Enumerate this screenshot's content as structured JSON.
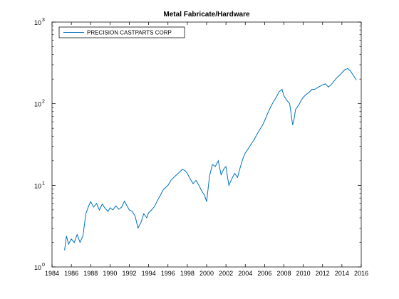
{
  "chart_data": {
    "type": "line",
    "title": "Metal Fabricate/Hardware",
    "xlabel": "",
    "ylabel": "",
    "x_scale": "linear",
    "y_scale": "log",
    "xlim": [
      1984,
      2016
    ],
    "ylim": [
      1,
      1000
    ],
    "x_ticks": [
      "1984",
      "1986",
      "1988",
      "1990",
      "1992",
      "1994",
      "1996",
      "1998",
      "2000",
      "2002",
      "2004",
      "2006",
      "2008",
      "2010",
      "2012",
      "2014",
      "2016"
    ],
    "y_ticks": [
      {
        "base": "10",
        "exp": "0"
      },
      {
        "base": "10",
        "exp": "1"
      },
      {
        "base": "10",
        "exp": "2"
      },
      {
        "base": "10",
        "exp": "3"
      }
    ],
    "grid": false,
    "legend_position": "top-left",
    "color": "#0072BD",
    "series": [
      {
        "name": "PRECISION CASTPARTS CORP",
        "x": [
          1985.3,
          1985.5,
          1985.7,
          1986.0,
          1986.3,
          1986.6,
          1986.9,
          1987.2,
          1987.5,
          1987.8,
          1988.0,
          1988.3,
          1988.6,
          1988.9,
          1989.2,
          1989.5,
          1989.8,
          1990.0,
          1990.3,
          1990.6,
          1990.9,
          1991.2,
          1991.5,
          1991.8,
          1992.0,
          1992.3,
          1992.6,
          1992.9,
          1993.2,
          1993.5,
          1993.8,
          1994.0,
          1994.3,
          1994.6,
          1994.9,
          1995.2,
          1995.5,
          1995.8,
          1996.0,
          1996.3,
          1996.6,
          1996.9,
          1997.2,
          1997.5,
          1997.8,
          1998.0,
          1998.3,
          1998.6,
          1998.9,
          1999.2,
          1999.5,
          1999.8,
          2000.0,
          2000.3,
          2000.6,
          2000.9,
          2001.2,
          2001.5,
          2001.8,
          2002.0,
          2002.3,
          2002.6,
          2002.9,
          2003.2,
          2003.5,
          2003.8,
          2004.0,
          2004.3,
          2004.6,
          2004.9,
          2005.2,
          2005.5,
          2005.8,
          2006.0,
          2006.3,
          2006.6,
          2006.9,
          2007.2,
          2007.5,
          2007.8,
          2008.0,
          2008.3,
          2008.6,
          2008.9,
          2009.0,
          2009.2,
          2009.5,
          2009.8,
          2010.0,
          2010.3,
          2010.6,
          2010.9,
          2011.2,
          2011.5,
          2011.8,
          2012.0,
          2012.3,
          2012.6,
          2012.9,
          2013.2,
          2013.5,
          2013.8,
          2014.0,
          2014.3,
          2014.6,
          2014.9,
          2015.2,
          2015.5
        ],
        "y": [
          1.6,
          2.4,
          1.9,
          2.2,
          2.0,
          2.5,
          2.0,
          2.4,
          4.5,
          5.6,
          6.3,
          5.4,
          6.0,
          5.0,
          5.9,
          5.2,
          4.8,
          5.3,
          5.0,
          5.6,
          5.1,
          5.4,
          6.4,
          5.5,
          5.0,
          4.8,
          4.2,
          3.0,
          3.5,
          4.5,
          4.0,
          4.6,
          5.0,
          5.5,
          6.5,
          7.5,
          8.8,
          9.5,
          10.0,
          11.5,
          12.5,
          13.5,
          14.5,
          15.8,
          15.0,
          14.0,
          12.0,
          10.5,
          11.5,
          10.0,
          8.5,
          7.5,
          6.3,
          13.0,
          18.0,
          17.0,
          20.0,
          13.5,
          16.0,
          17.0,
          10.0,
          12.0,
          14.0,
          12.5,
          17.0,
          22.0,
          25.0,
          28.0,
          32.0,
          36.0,
          42.0,
          48.0,
          55.0,
          62.0,
          75.0,
          90.0,
          105.0,
          120.0,
          140.0,
          150.0,
          125.0,
          110.0,
          100.0,
          55.0,
          60.0,
          85.0,
          95.0,
          110.0,
          120.0,
          130.0,
          138.0,
          150.0,
          150.0,
          158.0,
          165.0,
          170.0,
          175.0,
          160.0,
          172.0,
          190.0,
          210.0,
          225.0,
          240.0,
          260.0,
          270.0,
          250.0,
          220.0,
          195.0
        ]
      }
    ]
  }
}
